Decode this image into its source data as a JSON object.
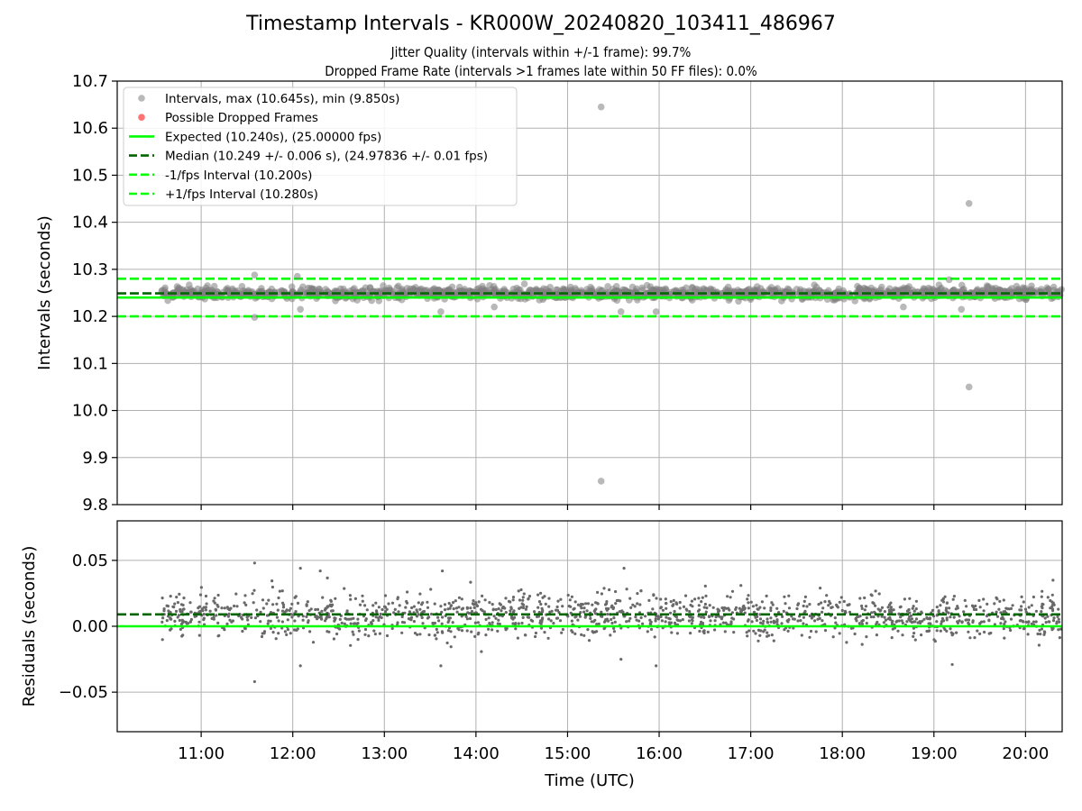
{
  "figure": {
    "title": "Timestamp Intervals - KR000W_20240820_103411_486967",
    "subtitle_1": "Jitter Quality (intervals within +/-1 frame): 99.7%",
    "subtitle_2": "Dropped Frame Rate (intervals >1 frames late within 50 FF files): 0.0%"
  },
  "colors": {
    "intervals": "#808080",
    "dropped": "#ff0000",
    "expected": "#00ff00",
    "median": "#006400",
    "fps_bounds": "#00ff00",
    "residuals": "#696969",
    "grid": "#b0b0b0"
  },
  "chart_data": [
    {
      "type": "scatter",
      "panel": "intervals",
      "ylabel": "Intervals (seconds)",
      "xlabel": "",
      "xlim": [
        "10:05",
        "20:24"
      ],
      "ylim": [
        9.8,
        10.7
      ],
      "yticks": [
        9.8,
        9.9,
        10.0,
        10.1,
        10.2,
        10.3,
        10.4,
        10.5,
        10.6,
        10.7
      ],
      "ytick_labels": [
        "9.8",
        "9.9",
        "10.0",
        "10.1",
        "10.2",
        "10.3",
        "10.4",
        "10.5",
        "10.6",
        "10.7"
      ],
      "xticks": [
        "11:00",
        "12:00",
        "13:00",
        "14:00",
        "15:00",
        "16:00",
        "17:00",
        "18:00",
        "19:00",
        "20:00"
      ],
      "grid": true,
      "legend_position": "top-left",
      "legend": [
        {
          "label": "Intervals, max (10.645s), min (9.850s)",
          "marker": "dot",
          "color": "#808080"
        },
        {
          "label": "Possible Dropped Frames",
          "marker": "dot",
          "color": "#ff0000"
        },
        {
          "label": "Expected (10.240s), (25.00000 fps)",
          "marker": "line",
          "color": "#00ff00"
        },
        {
          "label": "Median (10.249 +/- 0.006 s), (24.97836 +/- 0.01 fps)",
          "marker": "dashed",
          "color": "#006400"
        },
        {
          "label": "-1/fps Interval (10.200s)",
          "marker": "dashed",
          "color": "#00ff00"
        },
        {
          "label": "+1/fps Interval (10.280s)",
          "marker": "dashed",
          "color": "#00ff00"
        }
      ],
      "hlines": {
        "expected": 10.24,
        "median": 10.249,
        "minus_fps": 10.2,
        "plus_fps": 10.28
      },
      "series": [
        {
          "name": "Intervals, max (10.645s), min (9.850s)",
          "time_start": "10:34",
          "time_end": "20:24",
          "typical_value": 10.249,
          "typical_spread": 0.006,
          "min": 9.85,
          "max": 10.645,
          "highlighted_points": [
            {
              "x": "15:22",
              "y": 10.645
            },
            {
              "x": "15:22",
              "y": 9.85
            },
            {
              "x": "19:23",
              "y": 10.44
            },
            {
              "x": "19:23",
              "y": 10.05
            },
            {
              "x": "11:35",
              "y": 10.288
            },
            {
              "x": "11:35",
              "y": 10.198
            },
            {
              "x": "12:03",
              "y": 10.285
            },
            {
              "x": "12:05",
              "y": 10.215
            },
            {
              "x": "13:37",
              "y": 10.21
            },
            {
              "x": "14:12",
              "y": 10.22
            },
            {
              "x": "15:35",
              "y": 10.21
            },
            {
              "x": "15:58",
              "y": 10.21
            },
            {
              "x": "18:40",
              "y": 10.22
            },
            {
              "x": "19:10",
              "y": 10.278
            },
            {
              "x": "19:18",
              "y": 10.215
            }
          ]
        },
        {
          "name": "Possible Dropped Frames",
          "points": []
        }
      ]
    },
    {
      "type": "scatter",
      "panel": "residuals",
      "ylabel": "Residuals (seconds)",
      "xlabel": "Time (UTC)",
      "xlim": [
        "10:05",
        "20:24"
      ],
      "ylim": [
        -0.08,
        0.08
      ],
      "yticks": [
        -0.05,
        0.0,
        0.05
      ],
      "ytick_labels": [
        "−0.05",
        "0.00",
        "0.05"
      ],
      "xticks": [
        "11:00",
        "12:00",
        "13:00",
        "14:00",
        "15:00",
        "16:00",
        "17:00",
        "18:00",
        "19:00",
        "20:00"
      ],
      "grid": true,
      "hlines": {
        "zero": 0.0,
        "median_offset": 0.009
      },
      "series": [
        {
          "name": "",
          "time_start": "10:34",
          "time_end": "20:24",
          "typical_value": 0.008,
          "typical_spread": 0.008,
          "highlighted_points": [
            {
              "x": "11:35",
              "y": 0.048
            },
            {
              "x": "11:35",
              "y": -0.042
            },
            {
              "x": "12:05",
              "y": 0.044
            },
            {
              "x": "12:05",
              "y": -0.03
            },
            {
              "x": "12:18",
              "y": 0.042
            },
            {
              "x": "13:38",
              "y": 0.042
            },
            {
              "x": "13:37",
              "y": -0.03
            },
            {
              "x": "15:37",
              "y": 0.044
            },
            {
              "x": "15:35",
              "y": -0.025
            },
            {
              "x": "15:58",
              "y": -0.03
            },
            {
              "x": "19:12",
              "y": -0.029
            },
            {
              "x": "20:18",
              "y": 0.035
            }
          ]
        }
      ]
    }
  ]
}
